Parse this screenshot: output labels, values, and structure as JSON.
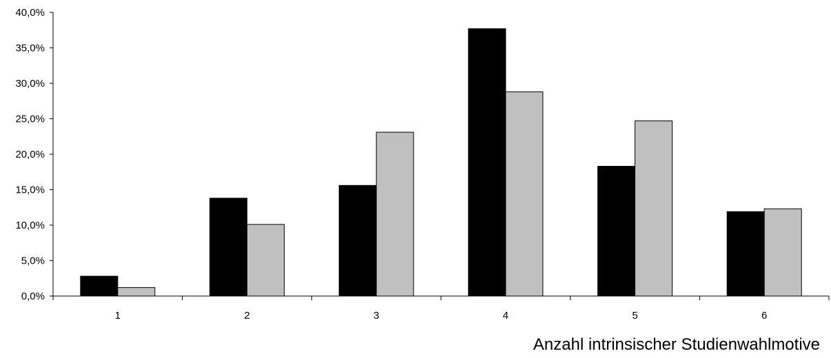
{
  "chart_data": {
    "type": "bar",
    "title": "",
    "xlabel": "Anzahl intrinsischer Studienwahlmotive",
    "ylabel": "",
    "categories": [
      "1",
      "2",
      "3",
      "4",
      "5",
      "6"
    ],
    "series": [
      {
        "values": [
          2.8,
          13.8,
          15.6,
          37.7,
          18.3,
          11.9
        ],
        "color": "#000000"
      },
      {
        "values": [
          1.2,
          10.1,
          23.1,
          28.8,
          24.7,
          12.3
        ],
        "color": "#c0c0c0"
      }
    ],
    "ylim": [
      0,
      40
    ],
    "yticks": [
      0,
      5,
      10,
      15,
      20,
      25,
      30,
      35,
      40
    ],
    "ytick_labels": [
      "0,0%",
      "5,0%",
      "10,0%",
      "15,0%",
      "20,0%",
      "25,0%",
      "30,0%",
      "35,0%",
      "40,0%"
    ],
    "grid": false,
    "legend": "none"
  }
}
